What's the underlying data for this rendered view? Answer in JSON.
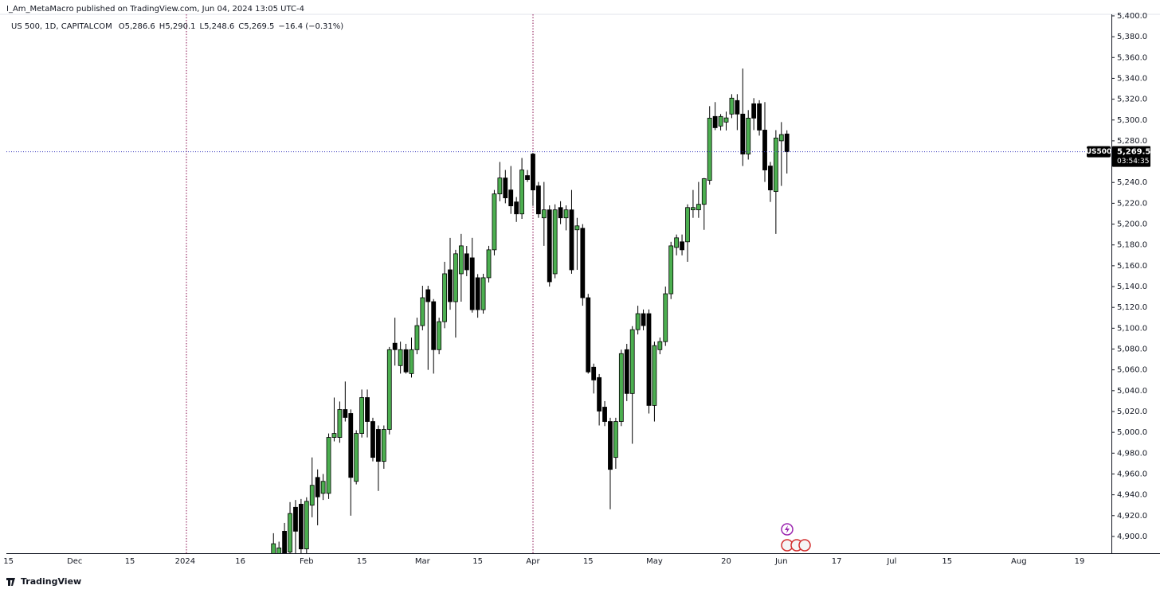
{
  "header": {
    "publisher": "I_Am_MetaMacro published on TradingView.com, Jun 04, 2024 13:05 UTC-4"
  },
  "footer": {
    "brand": "TradingView"
  },
  "chart_data": {
    "type": "candlestick",
    "info_line": [
      "US 500, 1D, CAPITALCOM",
      "O5,286.6",
      "H5,290.1",
      "L5,248.6",
      "C5,269.5",
      "−16.4 (−0.31%)"
    ],
    "up_color": "#4caf50",
    "down_color": "#000000",
    "grid": false,
    "ylim": [
      4883.9,
      5401.5
    ],
    "yticks": [
      {
        "value": 4900,
        "label": "4,900.0"
      },
      {
        "value": 4920,
        "label": "4,920.0"
      },
      {
        "value": 4940,
        "label": "4,940.0"
      },
      {
        "value": 4960,
        "label": "4,960.0"
      },
      {
        "value": 4980,
        "label": "4,980.0"
      },
      {
        "value": 5000,
        "label": "5,000.0"
      },
      {
        "value": 5020,
        "label": "5,020.0"
      },
      {
        "value": 5040,
        "label": "5,040.0"
      },
      {
        "value": 5060,
        "label": "5,060.0"
      },
      {
        "value": 5080,
        "label": "5,080.0"
      },
      {
        "value": 5100,
        "label": "5,100.0"
      },
      {
        "value": 5120,
        "label": "5,120.0"
      },
      {
        "value": 5140,
        "label": "5,140.0"
      },
      {
        "value": 5160,
        "label": "5,160.0"
      },
      {
        "value": 5180,
        "label": "5,180.0"
      },
      {
        "value": 5200,
        "label": "5,200.0"
      },
      {
        "value": 5220,
        "label": "5,220.0"
      },
      {
        "value": 5240,
        "label": "5,240.0"
      },
      {
        "value": 5260,
        "label": "5,260.0"
      },
      {
        "value": 5280,
        "label": "5,280.0"
      },
      {
        "value": 5300,
        "label": "5,300.0"
      },
      {
        "value": 5320,
        "label": "5,320.0"
      },
      {
        "value": 5340,
        "label": "5,340.0"
      },
      {
        "value": 5360,
        "label": "5,360.0"
      },
      {
        "value": 5380,
        "label": "5,380.0"
      },
      {
        "value": 5400,
        "label": "5,400.0"
      }
    ],
    "last_price": {
      "label": "US500",
      "value": 5269.5,
      "value_label": "5,269.5",
      "countdown": "03:54:35"
    },
    "categories": [
      "15",
      null,
      null,
      null,
      null,
      null,
      null,
      null,
      null,
      null,
      null,
      null,
      "Dec",
      null,
      null,
      null,
      null,
      null,
      null,
      null,
      null,
      null,
      "15",
      null,
      null,
      null,
      null,
      null,
      null,
      null,
      null,
      null,
      "2024",
      null,
      null,
      null,
      null,
      null,
      null,
      null,
      null,
      null,
      "16",
      null,
      null,
      null,
      null,
      null,
      null,
      null,
      null,
      null,
      null,
      null,
      "Feb",
      null,
      null,
      null,
      null,
      null,
      null,
      null,
      null,
      null,
      "15",
      null,
      null,
      null,
      null,
      null,
      null,
      null,
      null,
      null,
      null,
      "Mar",
      null,
      null,
      null,
      null,
      null,
      null,
      null,
      null,
      null,
      "15",
      null,
      null,
      null,
      null,
      null,
      null,
      null,
      null,
      null,
      "Apr",
      null,
      null,
      null,
      null,
      null,
      null,
      null,
      null,
      null,
      "15",
      null,
      null,
      null,
      null,
      null,
      null,
      null,
      null,
      null,
      null,
      null,
      "May",
      null,
      null,
      null,
      null,
      null,
      null,
      null,
      null,
      null,
      null,
      null,
      null,
      "20",
      null,
      null,
      null,
      null,
      null,
      null,
      null,
      null,
      null,
      "Jun",
      null,
      null,
      null,
      null,
      null,
      null,
      null,
      null,
      null,
      "17",
      null,
      null,
      null,
      null,
      null,
      null,
      null,
      null,
      null,
      "Jul",
      null,
      null,
      null,
      null,
      null,
      null,
      null,
      null,
      null,
      "15",
      null,
      null,
      null,
      null,
      null,
      null,
      null,
      null,
      null,
      null,
      null,
      null,
      "Aug",
      null,
      null,
      null,
      null,
      null,
      null,
      null,
      null,
      null,
      null,
      "19",
      null,
      null,
      null,
      null,
      null
    ],
    "open": [
      null,
      null,
      null,
      null,
      null,
      null,
      null,
      null,
      null,
      null,
      null,
      null,
      null,
      null,
      null,
      null,
      null,
      null,
      null,
      null,
      null,
      null,
      null,
      null,
      null,
      null,
      null,
      null,
      null,
      null,
      null,
      null,
      null,
      null,
      null,
      null,
      null,
      null,
      null,
      null,
      null,
      null,
      null,
      null,
      null,
      null,
      null,
      null,
      4870.0,
      4882.0,
      4905.0,
      4885.0,
      4928.0,
      4931.0,
      4888.0,
      4930.0,
      4956.7,
      4941.4,
      4941.4,
      4995.1,
      4995.1,
      5021.9,
      5018.1,
      4952.9,
      4998.9,
      5033.4,
      5010.4,
      5002.8,
      4972.1,
      5002.8,
      5085.6,
      5064.1,
      5079.4,
      5056.4,
      5079.4,
      5102.5,
      5137.0,
      5125.5,
      5079.4,
      5106.3,
      5156.1,
      5125.5,
      5152.3,
      5171.5,
      5167.6,
      5148.5,
      5117.8,
      5148.5,
      5175.3,
      5229.0,
      5244.3,
      5232.8,
      5221.3,
      5209.8,
      5246.6,
      5267.3,
      5236.7,
      5206.0,
      5213.7,
      5152.3,
      5215.9,
      5206.0,
      5213.7,
      5194.5,
      5196.0,
      5129.3,
      5062.6,
      5052.6,
      5024.2,
      5010.4,
      4975.9,
      5010.4,
      5079.4,
      5037.3,
      5098.6,
      5114.0,
      5114.0,
      5025.8,
      5079.4,
      5087.1,
      5133.1,
      5177.6,
      5183.0,
      5183.0,
      5213.7,
      5213.7,
      5219.0,
      5242.0,
      5303.4,
      5294.2,
      5298.0,
      5305.7,
      5318.7,
      5305.7,
      5267.3,
      5315.6,
      5315.6,
      5290.3,
      5255.8,
      5231.3,
      5280.0,
      5286.6,
      null,
      null,
      null,
      null,
      null,
      null,
      null,
      null,
      null,
      null,
      null,
      null,
      null,
      null,
      null,
      null,
      null,
      null,
      null,
      null,
      null,
      null,
      null,
      null,
      null,
      null,
      null,
      null,
      null,
      null,
      null,
      null,
      null,
      null,
      null,
      null,
      null,
      null,
      null,
      null,
      null,
      null,
      null,
      null,
      null,
      null,
      null,
      null,
      null,
      null,
      null,
      null,
      null,
      null,
      null,
      null,
      null,
      null
    ],
    "high": [
      null,
      null,
      null,
      null,
      null,
      null,
      null,
      null,
      null,
      null,
      null,
      null,
      null,
      null,
      null,
      null,
      null,
      null,
      null,
      null,
      null,
      null,
      null,
      null,
      null,
      null,
      null,
      null,
      null,
      null,
      null,
      null,
      null,
      null,
      null,
      null,
      null,
      null,
      null,
      null,
      null,
      null,
      null,
      null,
      null,
      null,
      null,
      null,
      4903.1,
      4895.0,
      4913.0,
      4933.0,
      4935.0,
      4936.0,
      4937.6,
      4975.9,
      4964.4,
      4960.0,
      4998.9,
      5033.4,
      5029.6,
      5048.8,
      5022.0,
      5002.0,
      5041.1,
      5041.1,
      5014.0,
      5006.6,
      5006.6,
      5082.0,
      5110.1,
      5087.1,
      5085.0,
      5091.0,
      5110.1,
      5140.8,
      5140.8,
      5128.0,
      5110.1,
      5163.8,
      5186.8,
      5175.3,
      5190.6,
      5179.0,
      5186.8,
      5152.0,
      5152.3,
      5179.1,
      5232.8,
      5259.7,
      5252.0,
      5255.8,
      5226.0,
      5263.5,
      5252.0,
      5268.5,
      5240.5,
      5240.5,
      5218.0,
      5219.0,
      5222.0,
      5218.0,
      5232.8,
      5206.0,
      5200.0,
      5133.0,
      5066.0,
      5056.0,
      5030.0,
      5014.0,
      5014.0,
      5079.4,
      5085.0,
      5102.0,
      5121.6,
      5118.0,
      5118.0,
      5087.1,
      5091.0,
      5140.0,
      5183.0,
      5190.0,
      5190.0,
      5219.0,
      5232.8,
      5240.5,
      5244.3,
      5313.3,
      5317.2,
      5305.7,
      5308.0,
      5324.8,
      5324.8,
      5349.4,
      5309.5,
      5321.0,
      5319.0,
      5317.2,
      5259.7,
      5290.3,
      5298.0,
      5290.1,
      null,
      null,
      null,
      null,
      null,
      null,
      null,
      null,
      null,
      null,
      null,
      null,
      null,
      null,
      null,
      null,
      null,
      null,
      null,
      null,
      null,
      null,
      null,
      null,
      null,
      null,
      null,
      null,
      null,
      null,
      null,
      null,
      null,
      null,
      null,
      null,
      null,
      null,
      null,
      null,
      null,
      null,
      null,
      null,
      null,
      null,
      null,
      null,
      null,
      null,
      null,
      null,
      null,
      null,
      null,
      null,
      null,
      null
    ],
    "low": [
      null,
      null,
      null,
      null,
      null,
      null,
      null,
      null,
      null,
      null,
      null,
      null,
      null,
      null,
      null,
      null,
      null,
      null,
      null,
      null,
      null,
      null,
      null,
      null,
      null,
      null,
      null,
      null,
      null,
      null,
      null,
      null,
      null,
      null,
      null,
      null,
      null,
      null,
      null,
      null,
      null,
      null,
      null,
      null,
      null,
      null,
      null,
      null,
      4855.0,
      4870.0,
      4860.0,
      4870.0,
      4870.0,
      4880.0,
      4880.0,
      4918.4,
      4910.7,
      4935.0,
      4936.0,
      4991.3,
      4990.0,
      5010.4,
      4919.9,
      4950.0,
      4995.0,
      4995.1,
      4972.1,
      4943.7,
      4965.0,
      4998.0,
      5064.1,
      5056.4,
      5056.4,
      5052.6,
      5075.0,
      5098.0,
      5060.0,
      5056.4,
      5075.0,
      5100.0,
      5117.8,
      5091.0,
      5125.5,
      5150.0,
      5115.0,
      5110.1,
      5114.0,
      5144.0,
      5170.0,
      5222.0,
      5220.0,
      5209.8,
      5202.1,
      5205.0,
      5240.5,
      5217.5,
      5206.0,
      5179.1,
      5140.0,
      5148.0,
      5200.0,
      5194.0,
      5152.3,
      5156.1,
      5121.6,
      5056.4,
      5037.3,
      5006.6,
      5006.0,
      4926.1,
      4965.0,
      5006.0,
      5030.0,
      4989.0,
      5094.0,
      5098.0,
      5018.1,
      5010.4,
      5075.0,
      5083.0,
      5128.0,
      5170.0,
      5170.0,
      5163.8,
      5206.0,
      5206.0,
      5194.5,
      5238.0,
      5290.3,
      5290.0,
      5290.0,
      5301.8,
      5290.3,
      5255.8,
      5262.0,
      5290.3,
      5285.0,
      5240.5,
      5221.3,
      5190.6,
      5236.7,
      5248.6,
      null,
      null,
      null,
      null,
      null,
      null,
      null,
      null,
      null,
      null,
      null,
      null,
      null,
      null,
      null,
      null,
      null,
      null,
      null,
      null,
      null,
      null,
      null,
      null,
      null,
      null,
      null,
      null,
      null,
      null,
      null,
      null,
      null,
      null,
      null,
      null,
      null,
      null,
      null,
      null,
      null,
      null,
      null,
      null,
      null,
      null,
      null,
      null,
      null,
      null,
      null,
      null,
      null,
      null,
      null,
      null,
      null,
      null
    ],
    "close": [
      null,
      null,
      null,
      null,
      null,
      null,
      null,
      null,
      null,
      null,
      null,
      null,
      null,
      null,
      null,
      null,
      null,
      null,
      null,
      null,
      null,
      null,
      null,
      null,
      null,
      null,
      null,
      null,
      null,
      null,
      null,
      null,
      null,
      null,
      null,
      null,
      null,
      null,
      null,
      null,
      null,
      null,
      null,
      null,
      null,
      null,
      null,
      null,
      4893.0,
      4889.0,
      4880.0,
      4922.0,
      4905.0,
      4888.0,
      4933.7,
      4949.1,
      4938.0,
      4952.9,
      4995.1,
      4998.9,
      5021.9,
      5014.3,
      4956.7,
      4998.9,
      5033.4,
      5010.4,
      4975.9,
      4972.1,
      5002.8,
      5079.4,
      5079.4,
      5079.4,
      5058.0,
      5079.4,
      5102.5,
      5129.3,
      5125.5,
      5079.4,
      5106.3,
      5152.3,
      5125.5,
      5171.5,
      5179.1,
      5156.1,
      5117.8,
      5117.8,
      5148.5,
      5175.3,
      5229.0,
      5244.3,
      5225.2,
      5217.5,
      5209.8,
      5252.0,
      5242.8,
      5232.8,
      5209.8,
      5213.7,
      5144.6,
      5213.7,
      5206.0,
      5213.7,
      5156.1,
      5198.3,
      5129.3,
      5058.0,
      5050.3,
      5020.4,
      5010.4,
      4964.4,
      5010.4,
      5075.6,
      5037.3,
      5098.6,
      5114.0,
      5102.5,
      5025.8,
      5083.3,
      5087.1,
      5133.1,
      5179.1,
      5186.8,
      5175.3,
      5215.9,
      5215.9,
      5219.0,
      5243.6,
      5301.8,
      5292.6,
      5303.4,
      5302.0,
      5321.0,
      5305.7,
      5267.3,
      5301.8,
      5301.8,
      5290.3,
      5252.0,
      5232.8,
      5282.7,
      5286.0,
      5269.5,
      null,
      null,
      null,
      null,
      null,
      null,
      null,
      null,
      null,
      null,
      null,
      null,
      null,
      null,
      null,
      null,
      null,
      null,
      null,
      null,
      null,
      null,
      null,
      null,
      null,
      null,
      null,
      null,
      null,
      null,
      null,
      null,
      null,
      null,
      null,
      null,
      null,
      null,
      null,
      null,
      null,
      null,
      null,
      null,
      null,
      null,
      null,
      null,
      null,
      null,
      null,
      null,
      null,
      null,
      null,
      null,
      null,
      null
    ]
  }
}
